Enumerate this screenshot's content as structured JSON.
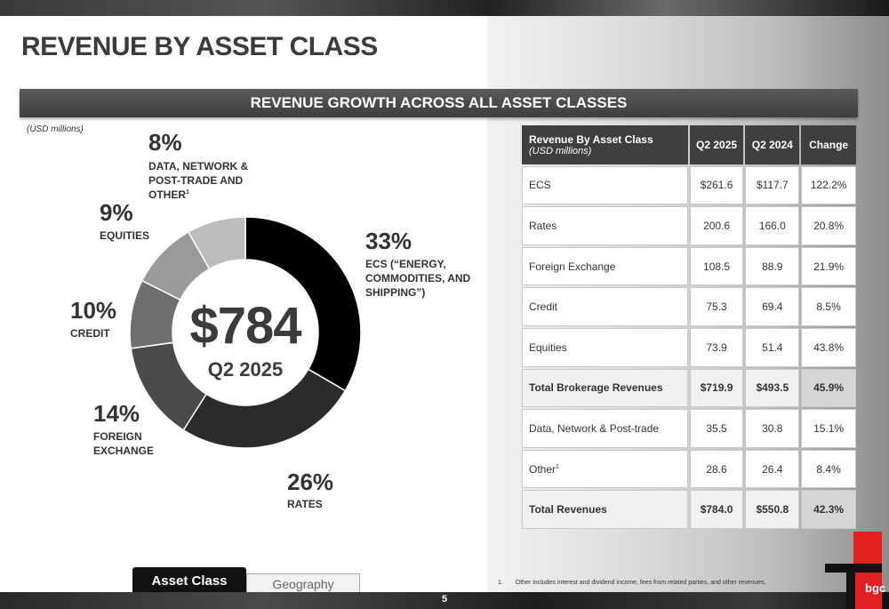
{
  "title": "REVENUE BY ASSET CLASS",
  "banner": "REVENUE GROWTH ACROSS ALL ASSET CLASSES",
  "units_note": "(USD millions)",
  "center": {
    "value": "$784",
    "period": "Q2 2025"
  },
  "donut": {
    "segments": [
      {
        "pct": "33%",
        "label_lines": [
          "ECS (“ENERGY,",
          "COMMODITIES, AND",
          "SHIPPING”)"
        ],
        "share": 33.4,
        "color": "#000000"
      },
      {
        "pct": "26%",
        "label_lines": [
          "RATES"
        ],
        "share": 25.6,
        "color": "#2b2b2b"
      },
      {
        "pct": "14%",
        "label_lines": [
          "FOREIGN",
          "EXCHANGE"
        ],
        "share": 13.8,
        "color": "#4a4a4a"
      },
      {
        "pct": "10%",
        "label_lines": [
          "CREDIT"
        ],
        "share": 9.6,
        "color": "#6e6e6e"
      },
      {
        "pct": "9%",
        "label_lines": [
          "EQUITIES"
        ],
        "share": 9.4,
        "color": "#9a9a9a"
      },
      {
        "pct": "8%",
        "label_lines": [
          "DATA, NETWORK &",
          "POST-TRADE AND",
          "OTHER"
        ],
        "label_sup": "1",
        "share": 8.2,
        "color": "#bdbdbd"
      }
    ]
  },
  "table": {
    "header": {
      "col0": "Revenue By Asset Class",
      "col0_sub": "(USD millions)",
      "col1": "Q2 2025",
      "col2": "Q2 2024",
      "col3": "Change"
    },
    "rows": [
      {
        "label": "ECS",
        "q2_2025": "$261.6",
        "q2_2024": "$117.7",
        "change": "122.2%"
      },
      {
        "label": "Rates",
        "q2_2025": "200.6",
        "q2_2024": "166.0",
        "change": "20.8%"
      },
      {
        "label": "Foreign Exchange",
        "q2_2025": "108.5",
        "q2_2024": "88.9",
        "change": "21.9%"
      },
      {
        "label": "Credit",
        "q2_2025": "75.3",
        "q2_2024": "69.4",
        "change": "8.5%"
      },
      {
        "label": "Equities",
        "q2_2025": "73.9",
        "q2_2024": "51.4",
        "change": "43.8%"
      },
      {
        "label": "Total Brokerage Revenues",
        "q2_2025": "$719.9",
        "q2_2024": "$493.5",
        "change": "45.9%"
      },
      {
        "label": "Data, Network & Post-trade",
        "q2_2025": "35.5",
        "q2_2024": "30.8",
        "change": "15.1%"
      },
      {
        "label": "Other",
        "label_sup": "1",
        "q2_2025": "28.6",
        "q2_2024": "26.4",
        "change": "8.4%"
      },
      {
        "label": "Total Revenues",
        "q2_2025": "$784.0",
        "q2_2024": "$550.8",
        "change": "42.3%"
      }
    ]
  },
  "tabs": {
    "active": "Asset Class",
    "inactive": "Geography"
  },
  "footnote": {
    "number": "1.",
    "text": "Other includes interest and dividend income, fees from related parties, and other revenues."
  },
  "page_number": "5",
  "logo_text": "bgc",
  "colors": {
    "brand_red": "#e02020",
    "banner": "#3f3f3f"
  }
}
